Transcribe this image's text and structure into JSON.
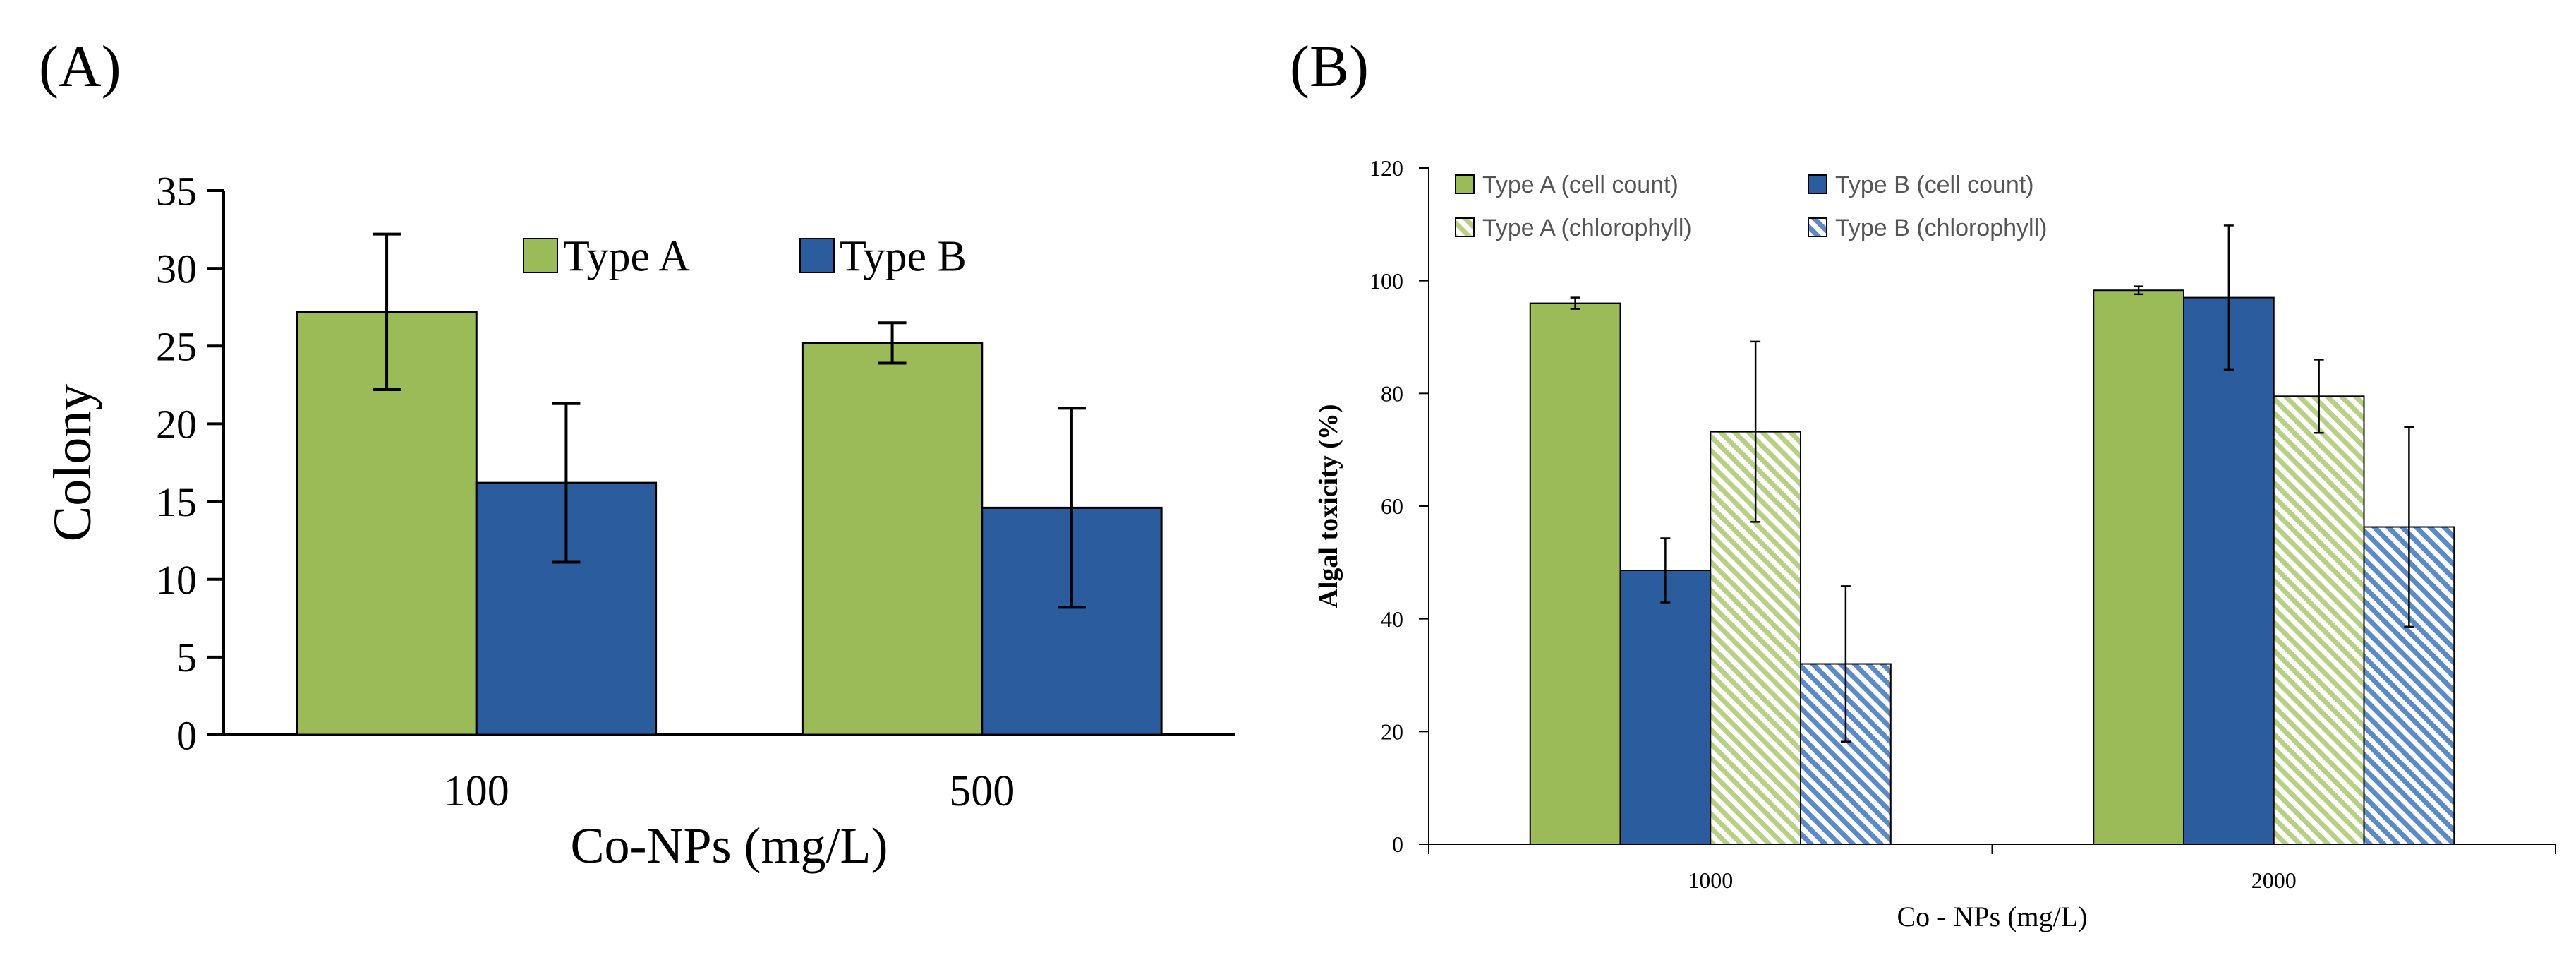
{
  "panels": {
    "a_label": "(A)",
    "b_label": "(B)"
  },
  "chart_data": [
    {
      "type": "bar",
      "panel": "(A)",
      "title": "",
      "xlabel": "Co-NPs (mg/L)",
      "ylabel": "Colony",
      "categories": [
        "100",
        "500"
      ],
      "ylim": [
        0,
        35
      ],
      "yticks": [
        0,
        5,
        10,
        15,
        20,
        25,
        30,
        35
      ],
      "grid": false,
      "legend_position": "top-center",
      "series": [
        {
          "name": "Type A",
          "values": [
            27.2,
            25.2
          ],
          "errors": [
            5.0,
            1.3
          ],
          "color": "#9bbb59",
          "pattern": "solid"
        },
        {
          "name": "Type B",
          "values": [
            16.2,
            14.6
          ],
          "errors": [
            5.1,
            6.4
          ],
          "color": "#2b5d9e",
          "pattern": "solid"
        }
      ]
    },
    {
      "type": "bar",
      "panel": "(B)",
      "title": "",
      "xlabel": "Co - NPs (mg/L)",
      "ylabel": "Algal toxicity (%)",
      "categories": [
        "1000",
        "2000"
      ],
      "ylim": [
        0,
        120
      ],
      "yticks": [
        0,
        20,
        40,
        60,
        80,
        100,
        120
      ],
      "grid": false,
      "legend_position": "top",
      "series": [
        {
          "name": "Type A (cell count)",
          "values": [
            96.0,
            98.3
          ],
          "errors": [
            1.0,
            0.7
          ],
          "color": "#9bbb59",
          "pattern": "solid"
        },
        {
          "name": "Type B (cell count)",
          "values": [
            48.6,
            97.0
          ],
          "errors": [
            5.7,
            12.8
          ],
          "color": "#2b5d9e",
          "pattern": "solid"
        },
        {
          "name": "Type A (chlorophyll)",
          "values": [
            73.2,
            79.5
          ],
          "errors": [
            16.0,
            6.5
          ],
          "color": "#9bbb59",
          "pattern": "hatch"
        },
        {
          "name": "Type B (chlorophyll)",
          "values": [
            32.0,
            56.3
          ],
          "errors": [
            13.8,
            17.7
          ],
          "color": "#2b5d9e",
          "pattern": "hatch"
        }
      ]
    }
  ]
}
